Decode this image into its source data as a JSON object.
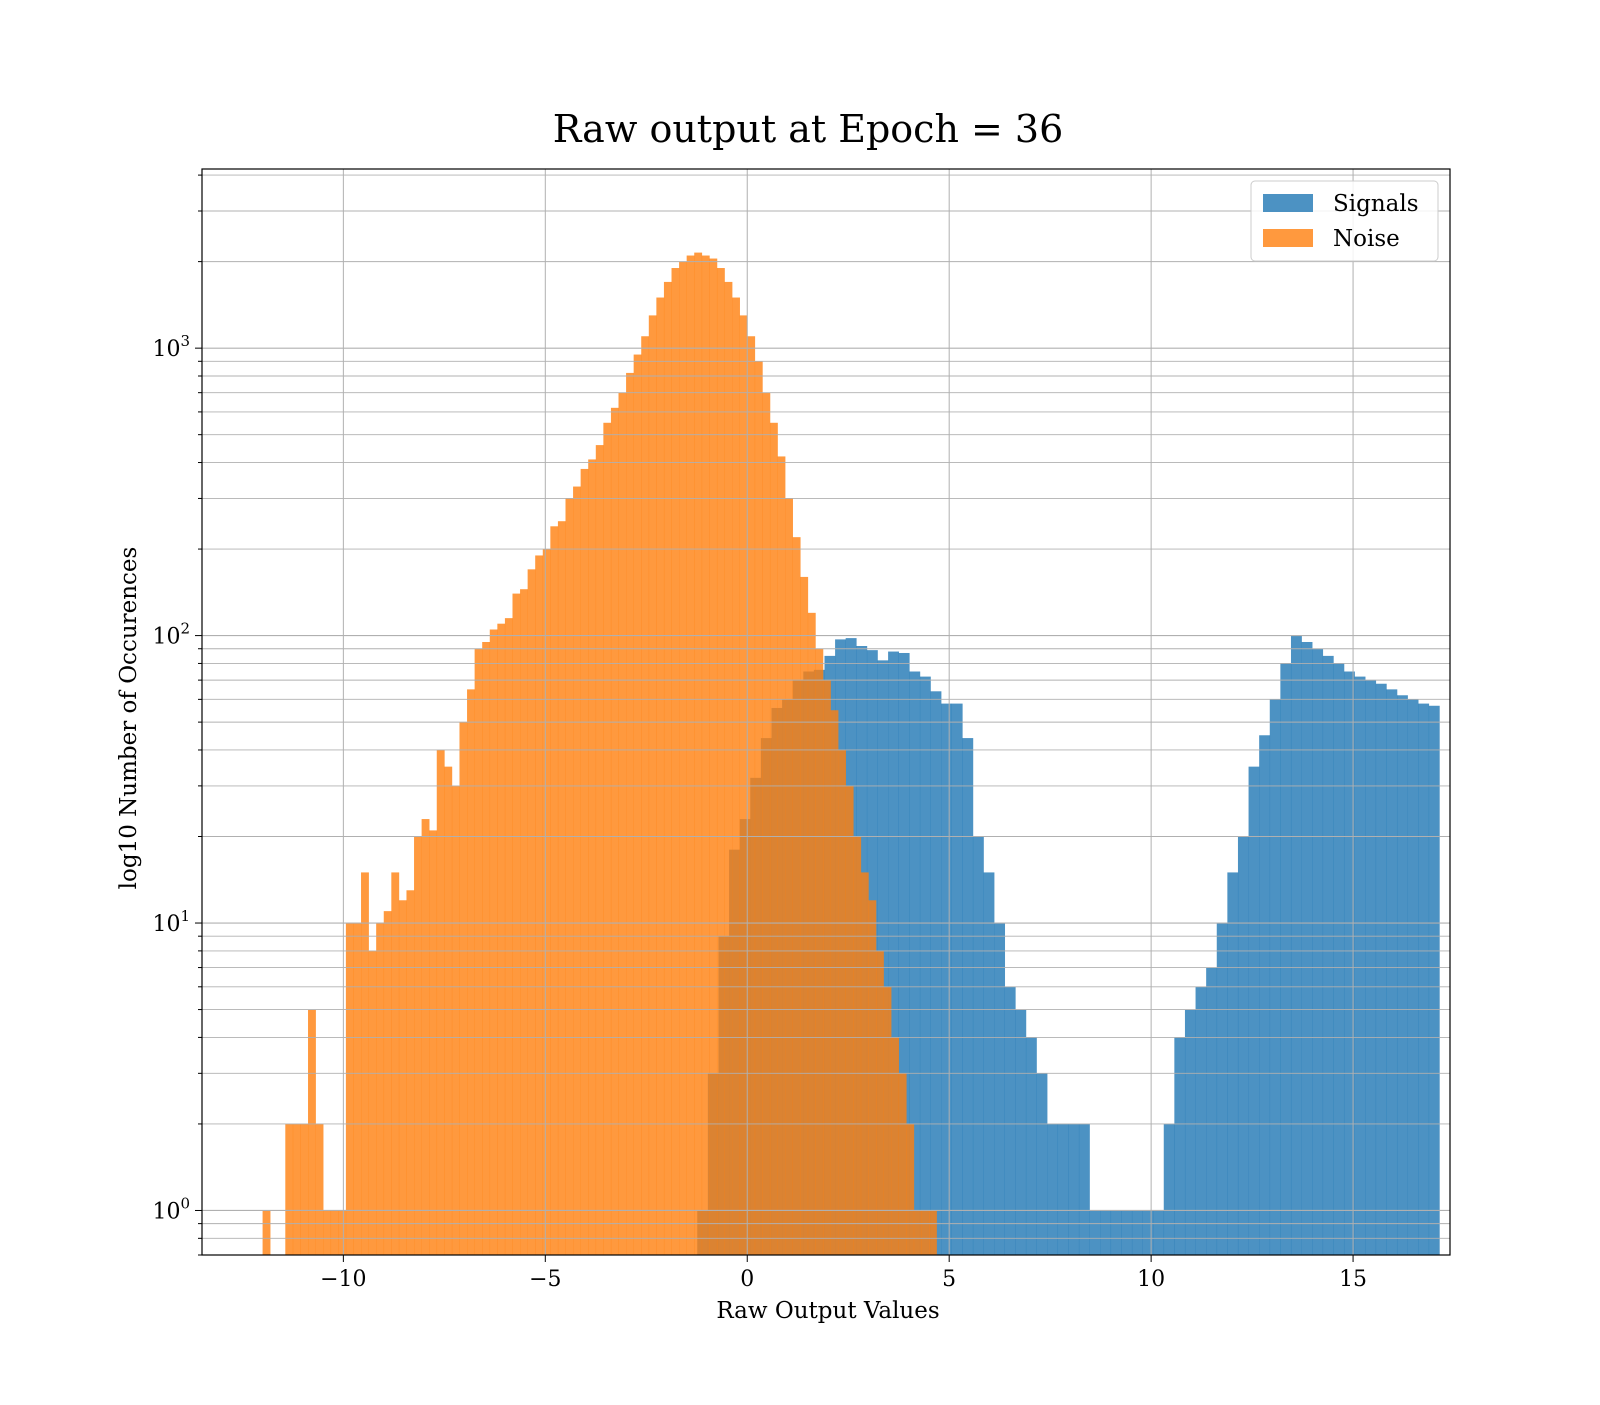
{
  "chart_data": {
    "type": "bar",
    "subtype": "histogram",
    "title": "Raw output at Epoch = 36",
    "xlabel": "Raw Output Values",
    "ylabel": "log10 Number of Occurences",
    "xlim": [
      -13.5,
      17.4
    ],
    "ylim": [
      0.7,
      4200
    ],
    "yscale": "log",
    "grid": true,
    "legend_position": "top-right",
    "x_ticks": [
      -10,
      -5,
      0,
      5,
      10,
      15
    ],
    "x_tick_labels": [
      "−10",
      "−5",
      "0",
      "5",
      "10",
      "15"
    ],
    "y_ticks": [
      {
        "value": 1,
        "base": "10",
        "exp": "0"
      },
      {
        "value": 10,
        "base": "10",
        "exp": "1"
      },
      {
        "value": 100,
        "base": "10",
        "exp": "2"
      },
      {
        "value": 1000,
        "base": "10",
        "exp": "3"
      }
    ],
    "series": [
      {
        "name": "Signals",
        "color": "#1f77b4",
        "opacity": 0.8,
        "bin_start": -12.0,
        "bin_width": 0.2625,
        "counts": [
          0,
          0,
          0,
          0,
          0,
          0,
          0,
          0,
          0,
          0,
          0,
          0,
          0,
          0,
          0,
          0,
          0,
          0,
          0,
          0,
          0,
          0,
          0,
          0,
          0,
          0,
          0,
          0,
          0,
          0,
          0,
          0,
          0,
          0,
          0,
          0,
          0,
          0,
          0,
          0,
          0,
          1,
          3,
          9,
          18,
          23,
          32,
          44,
          56,
          60,
          70,
          75,
          76,
          85,
          97,
          98,
          92,
          89,
          82,
          88,
          87,
          75,
          72,
          64,
          58,
          58,
          44,
          20,
          15,
          10,
          6,
          5,
          4,
          3,
          2,
          2,
          2,
          2,
          1,
          1,
          1,
          1,
          1,
          1,
          1,
          2,
          4,
          5,
          6,
          7,
          10,
          15,
          20,
          35,
          45,
          60,
          80,
          100,
          95,
          90,
          85,
          80,
          75,
          72,
          70,
          68,
          65,
          62,
          60,
          58,
          57
        ]
      },
      {
        "name": "Noise",
        "color": "#ff7f0e",
        "opacity": 0.8,
        "bin_start": -12.0,
        "bin_width": 0.1875,
        "counts": [
          1,
          0,
          0,
          2,
          2,
          2,
          5,
          2,
          1,
          1,
          1,
          10,
          10,
          15,
          8,
          10,
          11,
          15,
          12,
          13,
          20,
          23,
          21,
          40,
          35,
          30,
          50,
          65,
          90,
          95,
          105,
          110,
          115,
          140,
          145,
          170,
          190,
          200,
          240,
          250,
          300,
          330,
          380,
          410,
          460,
          550,
          620,
          700,
          820,
          950,
          1100,
          1300,
          1500,
          1700,
          1900,
          2000,
          2100,
          2150,
          2100,
          2050,
          1900,
          1700,
          1500,
          1300,
          1100,
          900,
          700,
          550,
          420,
          300,
          220,
          160,
          120,
          90,
          70,
          55,
          40,
          30,
          20,
          15,
          12,
          8,
          6,
          4,
          3,
          2,
          1,
          1,
          1
        ]
      }
    ]
  }
}
